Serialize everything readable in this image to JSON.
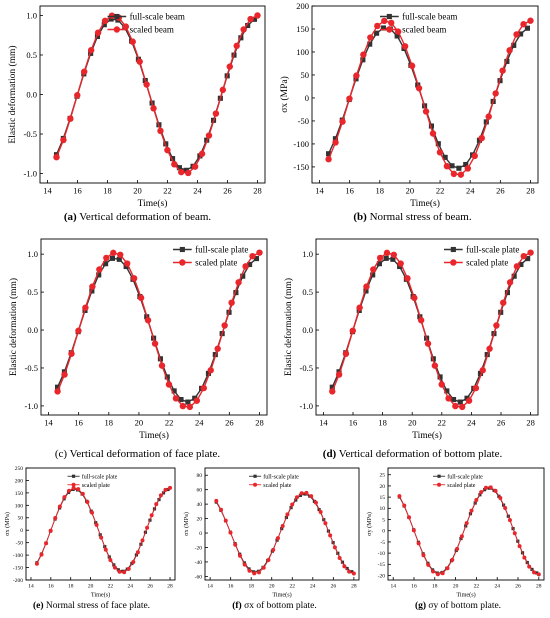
{
  "colors": {
    "series1": "#333333",
    "series2": "#e8262b"
  },
  "panels": [
    {
      "caption": {
        "letter": "(a)",
        "text": " Vertical deformation of beam."
      },
      "chart_data": {
        "type": "line",
        "xlabel": "Time(s)",
        "ylabel": "Elastic deformation (mm)",
        "xlim": [
          13.5,
          28.5
        ],
        "ylim": [
          -1.12,
          1.12
        ],
        "xticks": [
          14,
          16,
          18,
          20,
          22,
          24,
          26,
          28
        ],
        "yticks": [
          -1.0,
          -0.5,
          0.0,
          0.5,
          1.0
        ],
        "ytick_labels": [
          "-1.0",
          "-0.5",
          "0.0",
          "0.5",
          "1.0"
        ],
        "legend_position": "top-center",
        "period": 9.6,
        "phase": 18.4,
        "series": [
          {
            "name": "full-scale beam",
            "amplitude": 0.96,
            "x_start": 14.6,
            "x_end": 27.8,
            "n_points": 30
          },
          {
            "name": "scaled beam",
            "amplitude": 1.0,
            "x_start": 14.6,
            "x_end": 28.0,
            "n_points": 30
          }
        ]
      }
    },
    {
      "caption": {
        "letter": "(b)",
        "text": " Normal stress of beam."
      },
      "chart_data": {
        "type": "line",
        "xlabel": "Time(s)",
        "ylabel": "σx (MPa)",
        "xlim": [
          13.5,
          28.5
        ],
        "ylim": [
          -185,
          200
        ],
        "xticks": [
          14,
          16,
          18,
          20,
          22,
          24,
          26,
          28
        ],
        "yticks": [
          -150,
          -100,
          -50,
          0,
          50,
          100,
          150,
          200
        ],
        "ytick_labels": [
          "-150",
          "-100",
          "-50",
          "0",
          "50",
          "100",
          "150",
          "200"
        ],
        "legend_position": "top-center",
        "period": 9.6,
        "phase": 18.4,
        "series": [
          {
            "name": "full-scale beam",
            "amplitude": 153,
            "x_start": 14.6,
            "x_end": 27.8,
            "n_points": 30
          },
          {
            "name": "scaled beam",
            "amplitude": 168,
            "x_start": 14.6,
            "x_end": 28.0,
            "n_points": 30
          }
        ]
      }
    },
    {
      "caption": {
        "letter": "(c)",
        "text": " Vertical deformation of face plate."
      },
      "chart_data": {
        "type": "line",
        "xlabel": "Time(s)",
        "ylabel": "Elastic deformation (mm)",
        "xlim": [
          13.5,
          28.5
        ],
        "ylim": [
          -1.12,
          1.2
        ],
        "xticks": [
          14,
          16,
          18,
          20,
          22,
          24,
          26,
          28
        ],
        "yticks": [
          -1.0,
          -0.5,
          0.0,
          0.5,
          1.0
        ],
        "ytick_labels": [
          "-1.0",
          "-0.5",
          "0.0",
          "0.5",
          "1.0"
        ],
        "legend_position": "top-right",
        "period": 9.6,
        "phase": 18.4,
        "series": [
          {
            "name": "full-scale plate",
            "amplitude": 0.95,
            "x_start": 14.6,
            "x_end": 27.8,
            "n_points": 30
          },
          {
            "name": "scaled plate",
            "amplitude": 1.02,
            "x_start": 14.6,
            "x_end": 28.0,
            "n_points": 30
          }
        ]
      }
    },
    {
      "caption": {
        "letter": "(d)",
        "text": " Vertical deformation of bottom plate."
      },
      "chart_data": {
        "type": "line",
        "xlabel": "Time(s)",
        "ylabel": "Elastic deformation (mm)",
        "xlim": [
          13.5,
          28.5
        ],
        "ylim": [
          -1.12,
          1.2
        ],
        "xticks": [
          14,
          16,
          18,
          20,
          22,
          24,
          26,
          28
        ],
        "yticks": [
          -1.0,
          -0.5,
          0.0,
          0.5,
          1.0
        ],
        "ytick_labels": [
          "-1.0",
          "-0.5",
          "0.0",
          "0.5",
          "1.0"
        ],
        "legend_position": "top-right",
        "period": 9.6,
        "phase": 18.4,
        "series": [
          {
            "name": "full-scale plate",
            "amplitude": 0.95,
            "x_start": 14.6,
            "x_end": 27.8,
            "n_points": 30
          },
          {
            "name": "scaled plate",
            "amplitude": 1.02,
            "x_start": 14.6,
            "x_end": 28.0,
            "n_points": 30
          }
        ]
      }
    },
    {
      "caption": {
        "letter": "(e)",
        "text": " Normal stress of face plate."
      },
      "chart_data": {
        "type": "line",
        "xlabel": "Time(s)",
        "ylabel": "σx (MPa)",
        "xlim": [
          13.5,
          28.5
        ],
        "ylim": [
          -200,
          250
        ],
        "xticks": [
          14,
          16,
          18,
          20,
          22,
          24,
          26,
          28
        ],
        "yticks": [
          -200,
          -150,
          -100,
          -50,
          0,
          50,
          100,
          150,
          200,
          250
        ],
        "ytick_labels": [
          "-200",
          "-150",
          "-100",
          "-50",
          "0",
          "50",
          "100",
          "150",
          "200",
          "250"
        ],
        "legend_position": "top-center",
        "period": 9.6,
        "phase": 18.4,
        "series": [
          {
            "name": "full-scale plate",
            "amplitude": 165,
            "x_start": 14.6,
            "x_end": 27.8,
            "n_points": 30
          },
          {
            "name": "scaled plate",
            "amplitude": 170,
            "x_start": 14.6,
            "x_end": 28.0,
            "n_points": 30
          }
        ]
      }
    },
    {
      "caption": {
        "letter": "(f)",
        "text": " σx of bottom plate."
      },
      "chart_data": {
        "type": "line",
        "xlabel": "Time(s)",
        "ylabel": "σx (MPa)",
        "xlim": [
          13.5,
          28.5
        ],
        "ylim": [
          -65,
          90
        ],
        "xticks": [
          14,
          16,
          18,
          20,
          22,
          24,
          26,
          28
        ],
        "yticks": [
          -60,
          -40,
          -20,
          0,
          20,
          40,
          60,
          80
        ],
        "ytick_labels": [
          "-60",
          "-40",
          "-20",
          "0",
          "20",
          "40",
          "60",
          "80"
        ],
        "legend_position": "top-center",
        "period": 9.6,
        "phase": 23.2,
        "series": [
          {
            "name": "full-scale plate",
            "amplitude": 54,
            "x_start": 14.6,
            "x_end": 27.8,
            "n_points": 30
          },
          {
            "name": "scaled plate",
            "amplitude": 56,
            "x_start": 14.6,
            "x_end": 28.0,
            "n_points": 30
          }
        ]
      }
    },
    {
      "caption": {
        "letter": "(g)",
        "text": " σy of bottom plate."
      },
      "chart_data": {
        "type": "line",
        "xlabel": "Time(s)",
        "ylabel": "σy (MPa)",
        "xlim": [
          13.5,
          28.5
        ],
        "ylim": [
          -22,
          28
        ],
        "xticks": [
          14,
          16,
          18,
          20,
          22,
          24,
          26,
          28
        ],
        "yticks": [
          -20,
          -15,
          -10,
          -5,
          0,
          5,
          10,
          15,
          20,
          25
        ],
        "ytick_labels": [
          "-20",
          "-15",
          "-10",
          "-5",
          "0",
          "5",
          "10",
          "15",
          "20",
          "25"
        ],
        "legend_position": "top-center",
        "period": 9.6,
        "phase": 23.2,
        "series": [
          {
            "name": "full-scale plate",
            "amplitude": 19,
            "x_start": 14.6,
            "x_end": 27.8,
            "n_points": 30
          },
          {
            "name": "scaled plate",
            "amplitude": 19.5,
            "x_start": 14.6,
            "x_end": 28.0,
            "n_points": 30
          }
        ]
      }
    }
  ]
}
